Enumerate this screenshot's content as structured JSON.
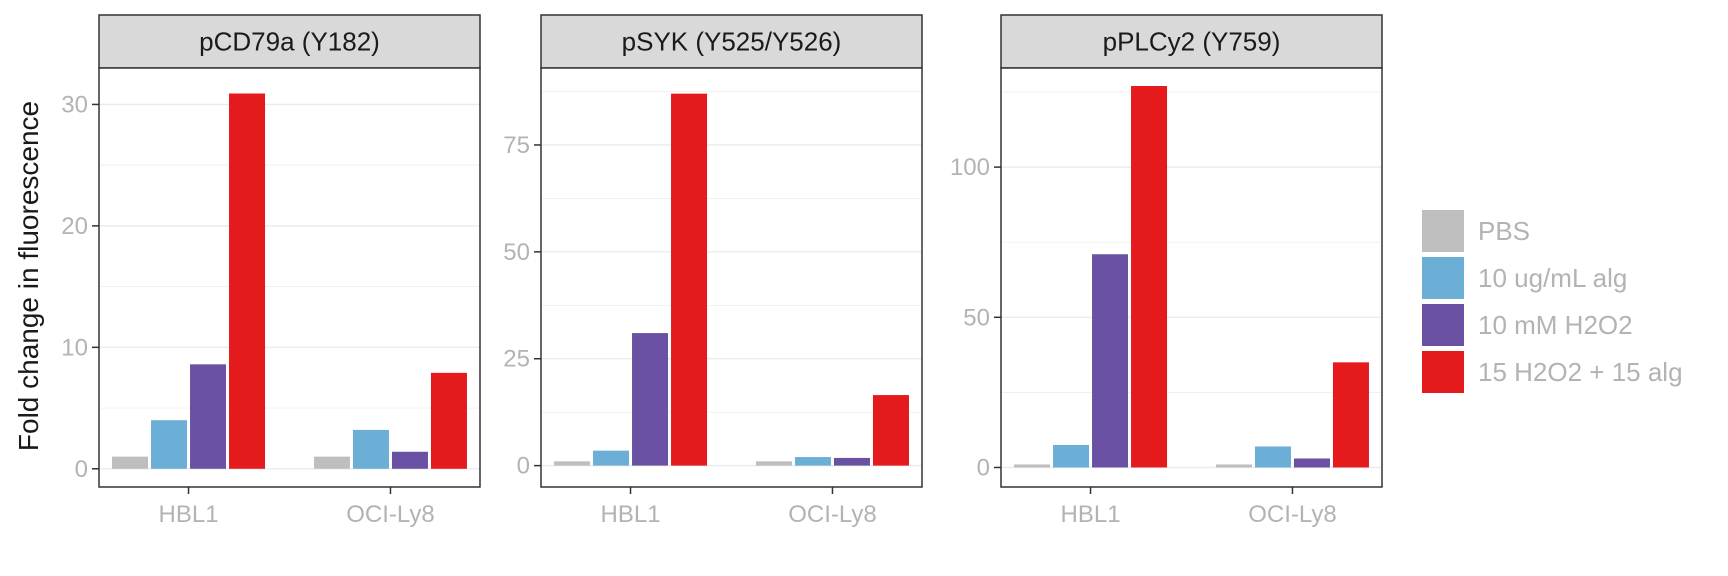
{
  "chart_data": {
    "type": "bar",
    "ylabel": "Fold change in fluorescence",
    "categories": [
      "HBL1",
      "OCI-Ly8"
    ],
    "legend": {
      "position": "right",
      "entries": [
        {
          "name": "PBS",
          "color": "#bebebe"
        },
        {
          "name": "10 ug/mL alg",
          "color": "#6baed6"
        },
        {
          "name": "10 mM H2O2",
          "color": "#6a51a3"
        },
        {
          "name": "15 H2O2 + 15 alg",
          "color": "#e41a1c"
        }
      ]
    },
    "grid": true,
    "panels": [
      {
        "title": "pCD79a (Y182)",
        "ylim": [
          -1.5,
          33
        ],
        "yticks": [
          0,
          10,
          20,
          30
        ],
        "series": [
          {
            "name": "PBS",
            "values": [
              1.0,
              1.0
            ]
          },
          {
            "name": "10 ug/mL alg",
            "values": [
              4.0,
              3.2
            ]
          },
          {
            "name": "10 mM H2O2",
            "values": [
              8.6,
              1.4
            ]
          },
          {
            "name": "15 H2O2 + 15 alg",
            "values": [
              30.9,
              7.9
            ]
          }
        ]
      },
      {
        "title": "pSYK (Y525/Y526)",
        "ylim": [
          -5,
          93
        ],
        "yticks": [
          0,
          25,
          50,
          75
        ],
        "series": [
          {
            "name": "PBS",
            "values": [
              1.0,
              1.0
            ]
          },
          {
            "name": "10 ug/mL alg",
            "values": [
              3.5,
              2.0
            ]
          },
          {
            "name": "10 mM H2O2",
            "values": [
              31.0,
              1.8
            ]
          },
          {
            "name": "15 H2O2 + 15 alg",
            "values": [
              87.0,
              16.5
            ]
          }
        ]
      },
      {
        "title": "pPLCy2 (Y759)",
        "ylim": [
          -6.5,
          133
        ],
        "yticks": [
          0,
          50,
          100
        ],
        "series": [
          {
            "name": "PBS",
            "values": [
              1.0,
              1.0
            ]
          },
          {
            "name": "10 ug/mL alg",
            "values": [
              7.5,
              7.0
            ]
          },
          {
            "name": "10 mM H2O2",
            "values": [
              71.0,
              3.0
            ]
          },
          {
            "name": "15 H2O2 + 15 alg",
            "values": [
              127.0,
              35.0
            ]
          }
        ]
      }
    ]
  }
}
